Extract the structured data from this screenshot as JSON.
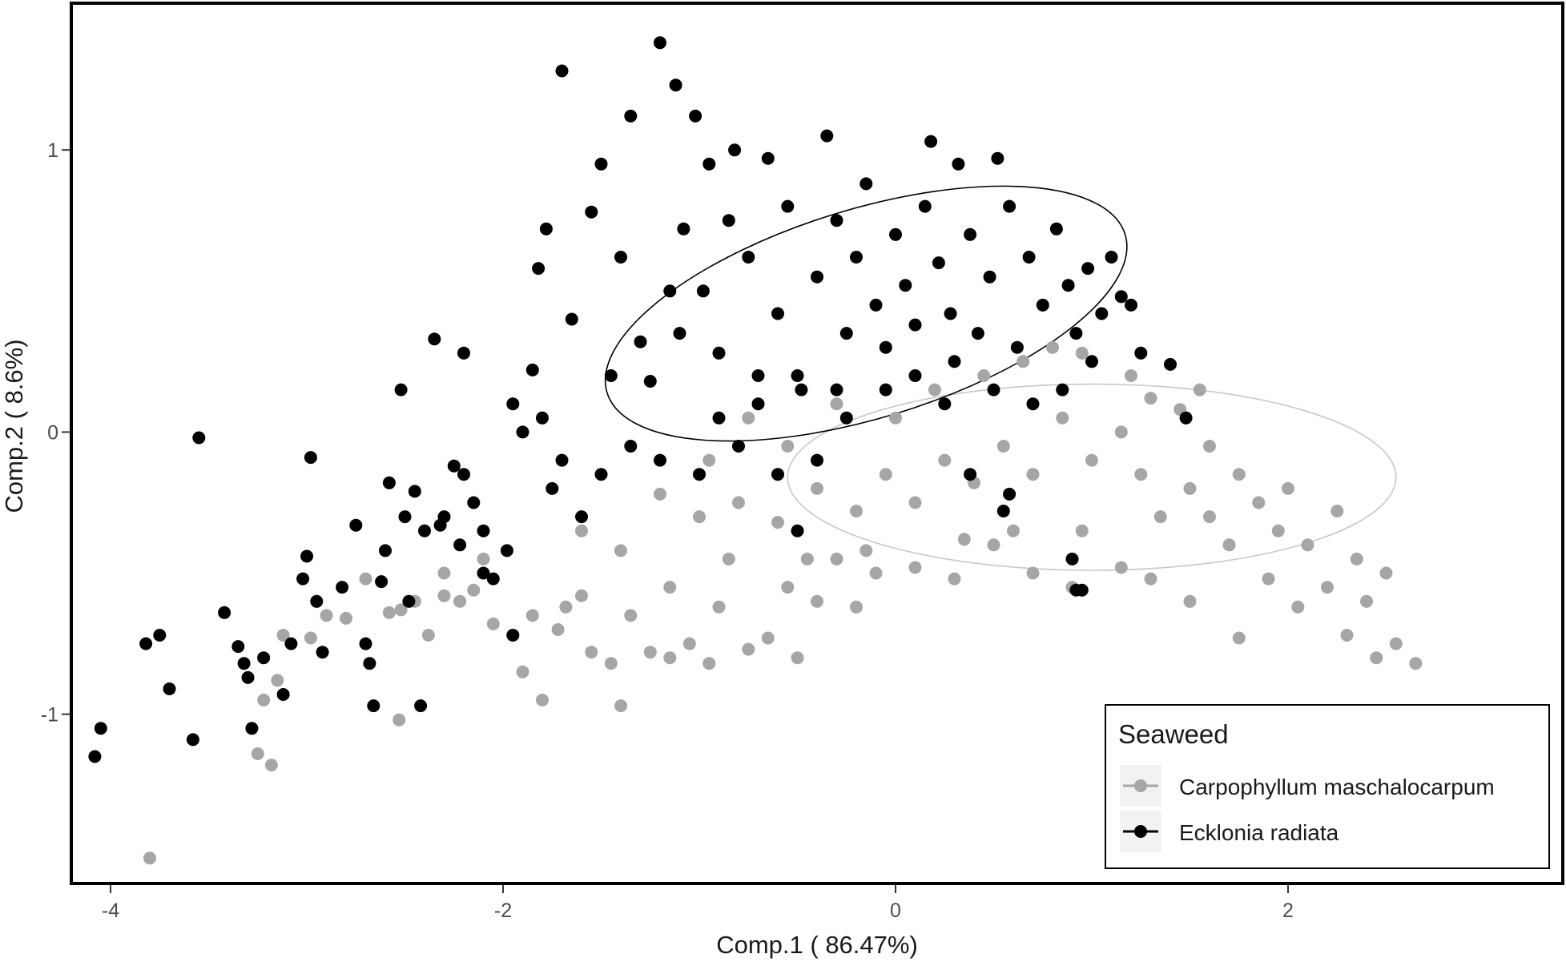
{
  "chart_data": {
    "type": "scatter",
    "xlabel": "Comp.1 ( 86.47%)",
    "ylabel": "Comp.2 ( 8.6%)",
    "xlim": [
      -4.2,
      3.4
    ],
    "ylim": [
      -1.6,
      1.52
    ],
    "xticks": [
      -4,
      -2,
      0,
      2
    ],
    "yticks": [
      -1,
      0,
      1
    ],
    "x_tick_labels": [
      "-4",
      "-2",
      "0",
      "2"
    ],
    "y_tick_labels": [
      "-1",
      "0",
      "1"
    ],
    "grid": false,
    "legend": {
      "title": "Seaweed",
      "placement": "bottom-right inside",
      "entries": [
        "Carpophyllum maschalocarpum",
        "Ecklonia radiata"
      ]
    },
    "series": [
      {
        "name": "Carpophyllum maschalocarpum",
        "color": "#a6a6a6",
        "ellipse": {
          "center": [
            1.0,
            -0.16
          ],
          "semi_axes": [
            1.55,
            0.33
          ],
          "angle_deg": 0
        },
        "points": [
          [
            -3.8,
            -1.51
          ],
          [
            -3.18,
            -1.18
          ],
          [
            -3.25,
            -1.14
          ],
          [
            -3.22,
            -0.95
          ],
          [
            -3.15,
            -0.88
          ],
          [
            -3.12,
            -0.72
          ],
          [
            -2.98,
            -0.73
          ],
          [
            -2.8,
            -0.66
          ],
          [
            -2.58,
            -0.64
          ],
          [
            -2.53,
            -1.02
          ],
          [
            -2.52,
            -0.63
          ],
          [
            -2.45,
            -0.6
          ],
          [
            -2.38,
            -0.72
          ],
          [
            -2.3,
            -0.58
          ],
          [
            -2.22,
            -0.6
          ],
          [
            -2.15,
            -0.56
          ],
          [
            -2.05,
            -0.68
          ],
          [
            -1.95,
            -0.72
          ],
          [
            -1.85,
            -0.65
          ],
          [
            -1.8,
            -0.95
          ],
          [
            -1.72,
            -0.7
          ],
          [
            -1.68,
            -0.62
          ],
          [
            -1.6,
            -0.58
          ],
          [
            -1.55,
            -0.78
          ],
          [
            -1.45,
            -0.82
          ],
          [
            -1.4,
            -0.97
          ],
          [
            -1.35,
            -0.65
          ],
          [
            -1.25,
            -0.78
          ],
          [
            -1.15,
            -0.8
          ],
          [
            -1.05,
            -0.75
          ],
          [
            -0.95,
            -0.82
          ],
          [
            -0.9,
            -0.62
          ],
          [
            -0.75,
            -0.77
          ],
          [
            -0.65,
            -0.73
          ],
          [
            -0.55,
            -0.55
          ],
          [
            -0.5,
            -0.8
          ],
          [
            -0.4,
            -0.6
          ],
          [
            -0.3,
            -0.45
          ],
          [
            -0.2,
            -0.62
          ],
          [
            -0.1,
            -0.5
          ],
          [
            0.1,
            -0.48
          ],
          [
            0.3,
            -0.52
          ],
          [
            0.5,
            -0.4
          ],
          [
            0.7,
            -0.5
          ],
          [
            0.9,
            -0.55
          ],
          [
            1.15,
            -0.48
          ],
          [
            1.3,
            -0.52
          ],
          [
            1.5,
            -0.6
          ],
          [
            1.7,
            -0.4
          ],
          [
            1.75,
            -0.73
          ],
          [
            1.9,
            -0.52
          ],
          [
            2.05,
            -0.62
          ],
          [
            2.2,
            -0.55
          ],
          [
            2.3,
            -0.72
          ],
          [
            2.4,
            -0.6
          ],
          [
            2.45,
            -0.8
          ],
          [
            2.55,
            -0.75
          ],
          [
            2.65,
            -0.82
          ],
          [
            2.5,
            -0.5
          ],
          [
            2.35,
            -0.45
          ],
          [
            2.1,
            -0.4
          ],
          [
            1.95,
            -0.35
          ],
          [
            1.85,
            -0.25
          ],
          [
            1.75,
            -0.15
          ],
          [
            1.6,
            -0.05
          ],
          [
            1.45,
            0.08
          ],
          [
            1.3,
            0.12
          ],
          [
            1.15,
            0.0
          ],
          [
            1.0,
            -0.1
          ],
          [
            0.85,
            0.05
          ],
          [
            0.7,
            -0.15
          ],
          [
            0.55,
            -0.05
          ],
          [
            0.4,
            -0.18
          ],
          [
            0.25,
            -0.1
          ],
          [
            0.1,
            -0.25
          ],
          [
            -0.05,
            -0.15
          ],
          [
            -0.2,
            -0.28
          ],
          [
            -0.4,
            -0.2
          ],
          [
            -0.6,
            -0.32
          ],
          [
            -0.8,
            -0.25
          ],
          [
            -1.0,
            -0.3
          ],
          [
            -1.2,
            -0.22
          ],
          [
            -1.4,
            -0.42
          ],
          [
            -1.6,
            -0.35
          ],
          [
            -2.1,
            -0.45
          ],
          [
            -2.3,
            -0.5
          ],
          [
            -2.7,
            -0.52
          ],
          [
            -2.9,
            -0.65
          ],
          [
            -0.95,
            -0.1
          ],
          [
            -0.75,
            0.05
          ],
          [
            -0.55,
            -0.05
          ],
          [
            -0.3,
            0.1
          ],
          [
            0.0,
            0.05
          ],
          [
            0.2,
            0.15
          ],
          [
            0.45,
            0.2
          ],
          [
            0.65,
            0.25
          ],
          [
            0.8,
            0.3
          ],
          [
            0.95,
            0.28
          ],
          [
            1.2,
            0.2
          ],
          [
            1.55,
            0.15
          ],
          [
            1.35,
            -0.3
          ],
          [
            1.6,
            -0.3
          ],
          [
            2.0,
            -0.2
          ],
          [
            2.25,
            -0.28
          ],
          [
            1.5,
            -0.2
          ],
          [
            1.25,
            -0.15
          ],
          [
            0.95,
            -0.35
          ],
          [
            0.6,
            -0.35
          ],
          [
            0.35,
            -0.38
          ],
          [
            -0.15,
            -0.42
          ],
          [
            -0.45,
            -0.45
          ],
          [
            -0.85,
            -0.45
          ],
          [
            -1.15,
            -0.55
          ],
          [
            -1.9,
            -0.85
          ]
        ]
      },
      {
        "name": "Ecklonia radiata",
        "color": "#000000",
        "ellipse": {
          "center": [
            -0.15,
            0.42
          ],
          "semi_axes": [
            1.38,
            0.37
          ],
          "angle_deg": 17
        },
        "points": [
          [
            -4.08,
            -1.15
          ],
          [
            -4.05,
            -1.05
          ],
          [
            -3.82,
            -0.75
          ],
          [
            -3.75,
            -0.72
          ],
          [
            -3.7,
            -0.91
          ],
          [
            -3.58,
            -1.09
          ],
          [
            -3.55,
            -0.02
          ],
          [
            -3.42,
            -0.64
          ],
          [
            -3.35,
            -0.76
          ],
          [
            -3.32,
            -0.82
          ],
          [
            -3.3,
            -0.87
          ],
          [
            -3.28,
            -1.05
          ],
          [
            -3.22,
            -0.8
          ],
          [
            -3.12,
            -0.93
          ],
          [
            -3.08,
            -0.75
          ],
          [
            -3.02,
            -0.52
          ],
          [
            -3.0,
            -0.44
          ],
          [
            -2.98,
            -0.09
          ],
          [
            -2.95,
            -0.6
          ],
          [
            -2.92,
            -0.78
          ],
          [
            -2.82,
            -0.55
          ],
          [
            -2.75,
            -0.33
          ],
          [
            -2.7,
            -0.75
          ],
          [
            -2.68,
            -0.82
          ],
          [
            -2.66,
            -0.97
          ],
          [
            -2.62,
            -0.53
          ],
          [
            -2.58,
            -0.18
          ],
          [
            -2.52,
            0.15
          ],
          [
            -2.48,
            -0.6
          ],
          [
            -2.45,
            -0.21
          ],
          [
            -2.42,
            -0.97
          ],
          [
            -2.35,
            0.33
          ],
          [
            -2.32,
            -0.33
          ],
          [
            -2.25,
            -0.12
          ],
          [
            -2.2,
            0.28
          ],
          [
            -2.15,
            -0.25
          ],
          [
            -2.1,
            -0.35
          ],
          [
            -2.05,
            -0.52
          ],
          [
            -1.98,
            -0.42
          ],
          [
            -1.95,
            -0.72
          ],
          [
            -1.9,
            0.0
          ],
          [
            -1.85,
            0.22
          ],
          [
            -1.82,
            0.58
          ],
          [
            -1.78,
            0.72
          ],
          [
            -1.75,
            -0.2
          ],
          [
            -1.7,
            1.28
          ],
          [
            -1.65,
            0.4
          ],
          [
            -1.6,
            -0.3
          ],
          [
            -1.55,
            0.78
          ],
          [
            -1.5,
            0.95
          ],
          [
            -1.45,
            0.2
          ],
          [
            -1.4,
            0.62
          ],
          [
            -1.35,
            1.12
          ],
          [
            -1.3,
            0.32
          ],
          [
            -1.25,
            0.18
          ],
          [
            -1.2,
            1.38
          ],
          [
            -1.15,
            0.5
          ],
          [
            -1.12,
            1.23
          ],
          [
            -1.08,
            0.72
          ],
          [
            -1.02,
            1.12
          ],
          [
            -0.98,
            0.5
          ],
          [
            -0.95,
            0.95
          ],
          [
            -0.9,
            0.28
          ],
          [
            -0.85,
            0.75
          ],
          [
            -0.82,
            1.0
          ],
          [
            -0.75,
            0.62
          ],
          [
            -0.7,
            0.2
          ],
          [
            -0.65,
            0.97
          ],
          [
            -0.6,
            0.42
          ],
          [
            -0.55,
            0.8
          ],
          [
            -0.5,
            -0.35
          ],
          [
            -0.48,
            0.15
          ],
          [
            -0.4,
            0.55
          ],
          [
            -0.35,
            1.05
          ],
          [
            -0.3,
            0.75
          ],
          [
            -0.25,
            0.35
          ],
          [
            -0.2,
            0.62
          ],
          [
            -0.15,
            0.88
          ],
          [
            -0.1,
            0.45
          ],
          [
            -0.05,
            0.3
          ],
          [
            0.0,
            0.7
          ],
          [
            0.05,
            0.52
          ],
          [
            0.1,
            0.38
          ],
          [
            0.15,
            0.8
          ],
          [
            0.18,
            1.03
          ],
          [
            0.22,
            0.6
          ],
          [
            0.28,
            0.42
          ],
          [
            0.32,
            0.95
          ],
          [
            0.38,
            0.7
          ],
          [
            0.42,
            0.35
          ],
          [
            0.48,
            0.55
          ],
          [
            0.52,
            0.97
          ],
          [
            0.58,
            0.8
          ],
          [
            0.62,
            0.3
          ],
          [
            0.68,
            0.62
          ],
          [
            0.75,
            0.45
          ],
          [
            0.82,
            0.72
          ],
          [
            0.88,
            0.52
          ],
          [
            0.92,
            0.35
          ],
          [
            0.98,
            0.58
          ],
          [
            1.05,
            0.42
          ],
          [
            1.1,
            0.62
          ],
          [
            1.15,
            0.48
          ],
          [
            1.2,
            0.45
          ],
          [
            1.25,
            0.28
          ],
          [
            1.4,
            0.24
          ],
          [
            1.48,
            0.05
          ],
          [
            0.9,
            -0.45
          ],
          [
            0.95,
            -0.56
          ],
          [
            0.92,
            -0.56
          ],
          [
            0.58,
            -0.22
          ],
          [
            0.55,
            -0.28
          ],
          [
            0.38,
            -0.15
          ],
          [
            0.25,
            0.1
          ],
          [
            -0.05,
            0.15
          ],
          [
            -0.25,
            0.05
          ],
          [
            -0.4,
            -0.1
          ],
          [
            -0.6,
            -0.15
          ],
          [
            -0.8,
            -0.05
          ],
          [
            -1.0,
            -0.15
          ],
          [
            -1.2,
            -0.1
          ],
          [
            -1.35,
            -0.05
          ],
          [
            -1.5,
            -0.15
          ],
          [
            -1.7,
            -0.1
          ],
          [
            -1.8,
            0.05
          ],
          [
            -1.95,
            0.1
          ],
          [
            -2.1,
            -0.5
          ],
          [
            -2.22,
            -0.4
          ],
          [
            -2.3,
            -0.3
          ],
          [
            -2.4,
            -0.35
          ],
          [
            -2.5,
            -0.3
          ],
          [
            -2.6,
            -0.42
          ],
          [
            -2.2,
            -0.15
          ],
          [
            -0.9,
            0.05
          ],
          [
            -0.7,
            0.1
          ],
          [
            -0.5,
            0.2
          ],
          [
            -0.3,
            0.15
          ],
          [
            0.1,
            0.2
          ],
          [
            0.3,
            0.25
          ],
          [
            0.5,
            0.15
          ],
          [
            0.7,
            0.1
          ],
          [
            0.85,
            0.15
          ],
          [
            1.0,
            0.25
          ],
          [
            -1.1,
            0.35
          ]
        ]
      }
    ]
  }
}
